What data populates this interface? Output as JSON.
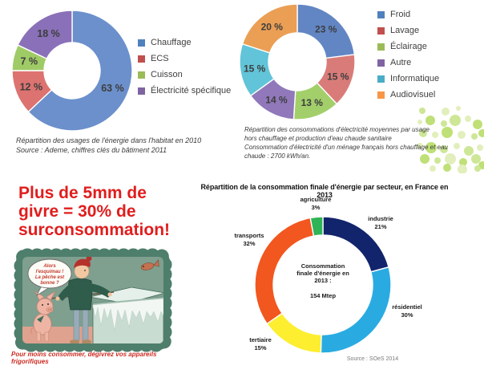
{
  "page": {
    "background": "#ffffff"
  },
  "chart_data": [
    {
      "type": "pie",
      "subtype": "donut",
      "name": "usages-energie-habitat-2010",
      "legend_position": "right",
      "segments": [
        {
          "label": "Chauffage",
          "value": 63,
          "pct_label": "63 %",
          "color": "#6b90cc",
          "legend_color": "#4f81bd"
        },
        {
          "label": "ECS",
          "value": 12,
          "pct_label": "12 %",
          "color": "#dc7370",
          "legend_color": "#c0504d"
        },
        {
          "label": "Cuisson",
          "value": 7,
          "pct_label": "7 %",
          "color": "#9fcb67",
          "legend_color": "#9bbb59"
        },
        {
          "label": "Électricité spécifique",
          "value": 18,
          "pct_label": "18 %",
          "color": "#8a70b8",
          "legend_color": "#8064a2"
        }
      ],
      "caption_lines": [
        "Répartition  des usages de l'énergie dans l'habitat en 2010",
        "Source : Ademe, chiffres clés du bâtiment 2011"
      ]
    },
    {
      "type": "pie",
      "subtype": "donut",
      "name": "consommations-electricite-par-usage",
      "legend_position": "right",
      "segments": [
        {
          "label": "Froid",
          "value": 23,
          "pct_label": "23 %",
          "color": "#6286c4",
          "legend_color": "#4f81bd"
        },
        {
          "label": "Lavage",
          "value": 15,
          "pct_label": "15 %",
          "color": "#d97c79",
          "legend_color": "#c0504d"
        },
        {
          "label": "Éclairage",
          "value": 13,
          "pct_label": "13 %",
          "color": "#a3cf6b",
          "legend_color": "#9bbb59"
        },
        {
          "label": "Autre",
          "value": 14,
          "pct_label": "14 %",
          "color": "#9078ba",
          "legend_color": "#8064a2"
        },
        {
          "label": "Informatique",
          "value": 15,
          "pct_label": "15 %",
          "color": "#62c4d8",
          "legend_color": "#4bacc6"
        },
        {
          "label": "Audiovisuel",
          "value": 20,
          "pct_label": "20 %",
          "color": "#eb9f55",
          "legend_color": "#f79646"
        }
      ],
      "caption_lines": [
        "Répartition  des consommations d'électricité moyennes par usage",
        "hors chauffage et production d'eau chaude sanitaire",
        "Consommation d'électricité d'un ménage français hors chauffage et eau",
        "chaude : 2700 kWh/an."
      ]
    },
    {
      "type": "pie",
      "subtype": "donut",
      "name": "consommation-finale-energie-par-secteur",
      "title": "Répartition de la consommation finale d'énergie par secteur, en France en 2013",
      "segments": [
        {
          "label": "industrie",
          "value": 21,
          "pct_label": "21%",
          "color": "#12246b"
        },
        {
          "label": "résidentiel",
          "value": 30,
          "pct_label": "30%",
          "color": "#29abe2"
        },
        {
          "label": "tertiaire",
          "value": 15,
          "pct_label": "15%",
          "color": "#fdee30"
        },
        {
          "label": "transports",
          "value": 32,
          "pct_label": "32%",
          "color": "#f2571f"
        },
        {
          "label": "agriculture",
          "value": 3,
          "pct_label": "3%",
          "color": "#2eb457"
        }
      ],
      "center_lines": [
        "Consommation",
        "finale d'énergie en",
        "2013 :"
      ],
      "center_value": "154 Mtep",
      "source": "Source : SOeS 2014"
    }
  ],
  "poster": {
    "headline_lines": [
      "Plus de 5mm de",
      "givre = 30% de",
      "surconsommation!"
    ],
    "headline_color": "#e11d1d",
    "bubble_lines": [
      "Alors",
      "l'esquimau !",
      "La pêche est",
      "bonne ?"
    ],
    "caption": "Pour moins consommer, dégivrez vos appareils frigorifiques"
  }
}
